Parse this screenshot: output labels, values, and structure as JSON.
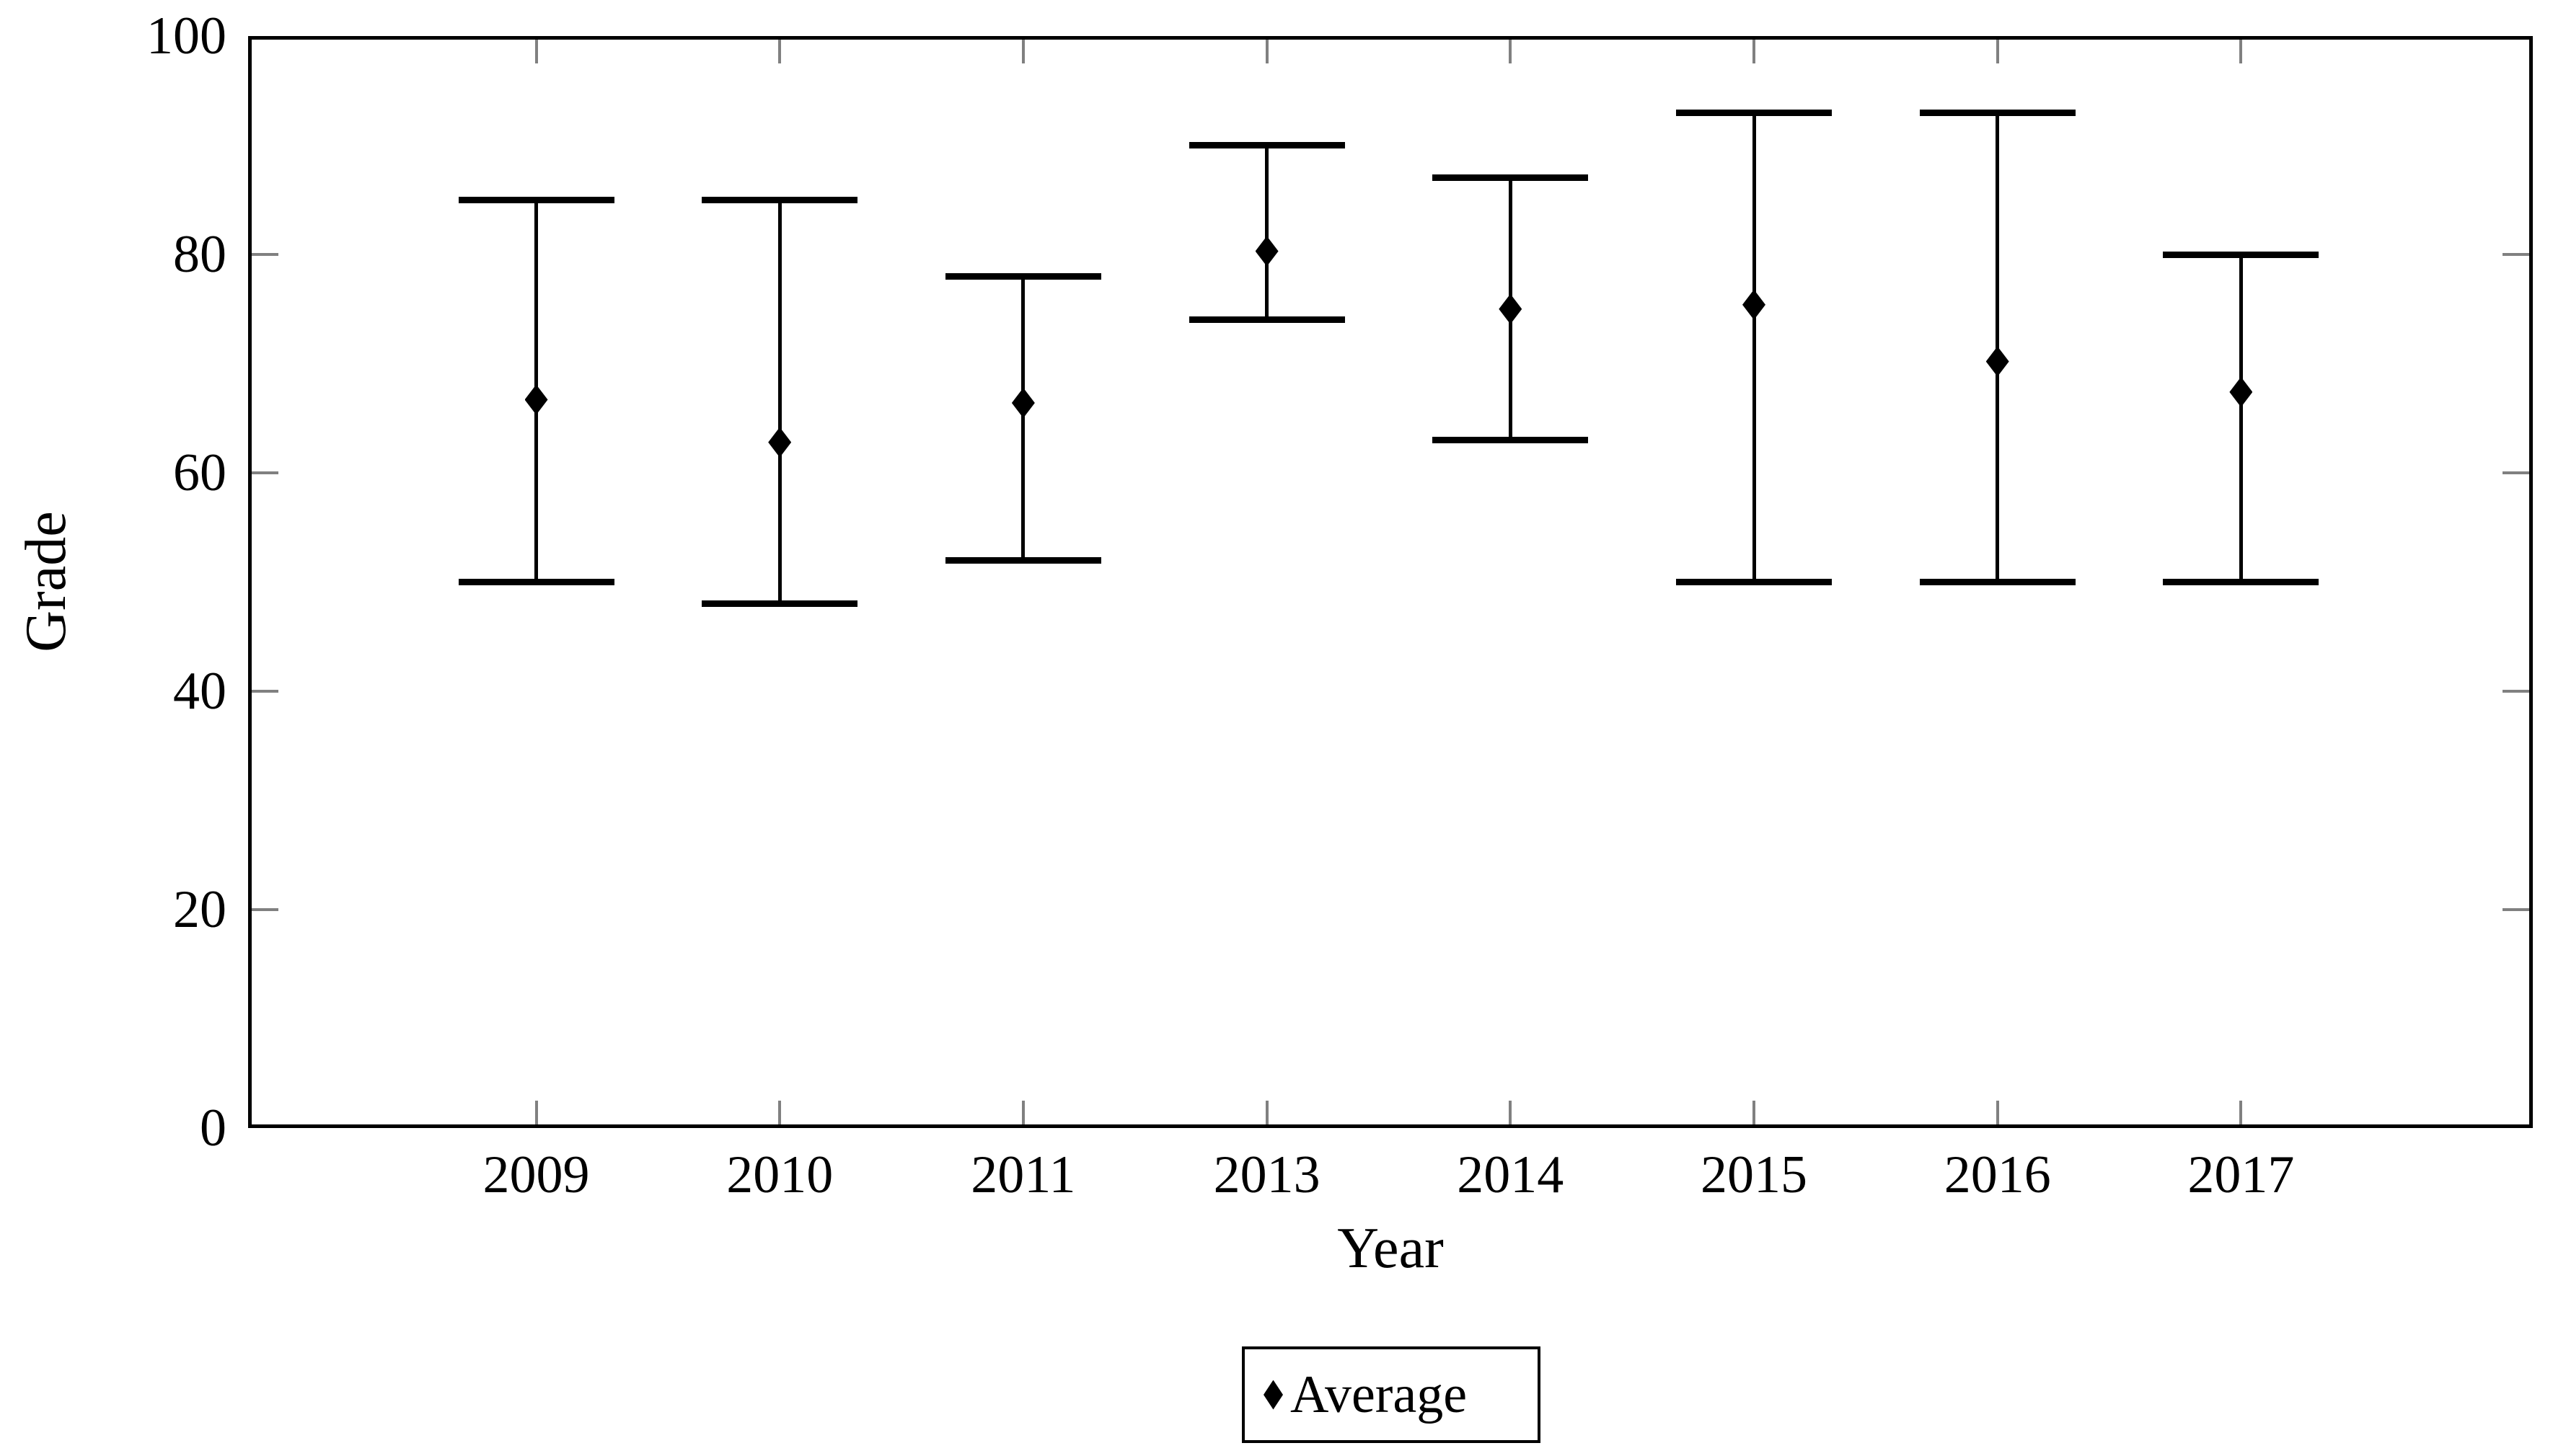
{
  "chart_data": {
    "type": "scatter",
    "title": "",
    "xlabel": "Year",
    "ylabel": "Grade",
    "ylim": [
      0,
      100
    ],
    "y_ticks": [
      0,
      20,
      40,
      60,
      80,
      100
    ],
    "grid": false,
    "categories": [
      "2009",
      "2010",
      "2011",
      "2013",
      "2014",
      "2015",
      "2016",
      "2017"
    ],
    "series": [
      {
        "name": "Average",
        "marker": "diamond",
        "values": [
          66.7,
          62.8,
          66.4,
          80.3,
          75.0,
          75.4,
          70.2,
          67.4
        ]
      }
    ],
    "error_bars": {
      "min": [
        50,
        48,
        52,
        74,
        63,
        50,
        50,
        50
      ],
      "max": [
        85,
        85,
        78,
        90,
        87,
        93,
        93,
        80
      ]
    },
    "legend": {
      "position": "below-center",
      "entries": [
        "Average"
      ]
    },
    "colors": {
      "axis": "#000000",
      "tick": "#808080",
      "marker": "#000000",
      "text": "#000000",
      "background": "#ffffff"
    }
  }
}
